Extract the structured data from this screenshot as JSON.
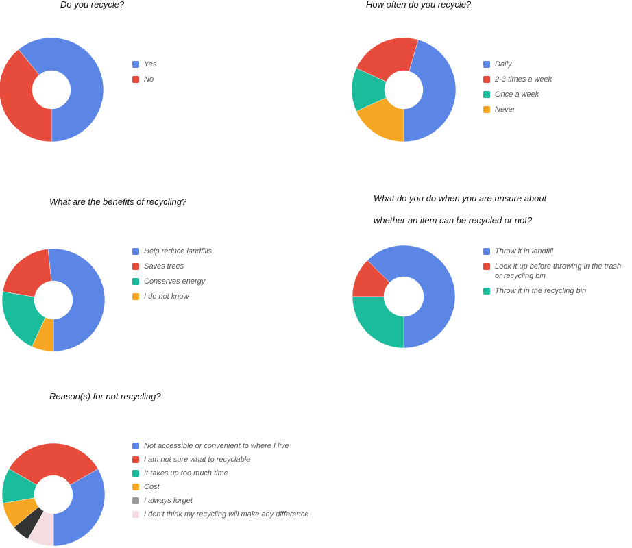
{
  "chart_data": [
    {
      "id": "recycle",
      "type": "pie",
      "title_lines": [
        "Do you recycle?"
      ],
      "categories": [
        "Yes",
        "No"
      ],
      "values": [
        60.9,
        39.1
      ],
      "colors": [
        "#5B86E5",
        "#E64B3C"
      ],
      "legend": "right"
    },
    {
      "id": "frequency",
      "type": "pie",
      "title_lines": [
        "How often do you recycle?"
      ],
      "categories": [
        "Daily",
        "2-3 times a week",
        "Once a week",
        "Never"
      ],
      "values": [
        45.5,
        22.7,
        13.6,
        18.2
      ],
      "colors": [
        "#5B86E5",
        "#E64B3C",
        "#1ABC9C",
        "#F5A623"
      ],
      "legend": "right"
    },
    {
      "id": "benefits",
      "type": "pie",
      "title_lines": [
        "What are the benefits of recycling?"
      ],
      "categories": [
        "Help reduce landfills",
        "Saves trees",
        "Conserves energy",
        "I do not know"
      ],
      "values": [
        51.7,
        20.7,
        20.7,
        6.9
      ],
      "colors": [
        "#5B86E5",
        "#E64B3C",
        "#1ABC9C",
        "#F5A623"
      ],
      "legend": "right"
    },
    {
      "id": "unsure",
      "type": "pie",
      "title_lines": [
        "What do you do when you are unsure about",
        "whether an item can be recycled or not?"
      ],
      "categories": [
        "Throw it in landfill",
        "Look it up before throwing in the trash or recycling bin",
        "Throw it in the recycling bin"
      ],
      "values": [
        62.5,
        12.5,
        25.0
      ],
      "colors": [
        "#5B86E5",
        "#E64B3C",
        "#1ABC9C"
      ],
      "legend": "right"
    },
    {
      "id": "reasons",
      "type": "pie",
      "title_lines": [
        "Reason(s) for not recycling?"
      ],
      "categories": [
        "Not accessible or convenient to where I live",
        "I am not sure what to recyclable",
        "It takes up too much time",
        "Cost",
        "I always forget",
        "I don't think my recycling will make any difference"
      ],
      "values": [
        31.6,
        31.6,
        10.5,
        7.9,
        5.3,
        7.9
      ],
      "colors": [
        "#5B86E5",
        "#E64B3C",
        "#1ABC9C",
        "#F5A623",
        "#333333",
        "#F5DCE1"
      ],
      "legend_colors": [
        "#5B86E5",
        "#E64B3C",
        "#1ABC9C",
        "#F5A623",
        "#999999",
        "#F5DCE1"
      ],
      "legend": "right"
    }
  ]
}
